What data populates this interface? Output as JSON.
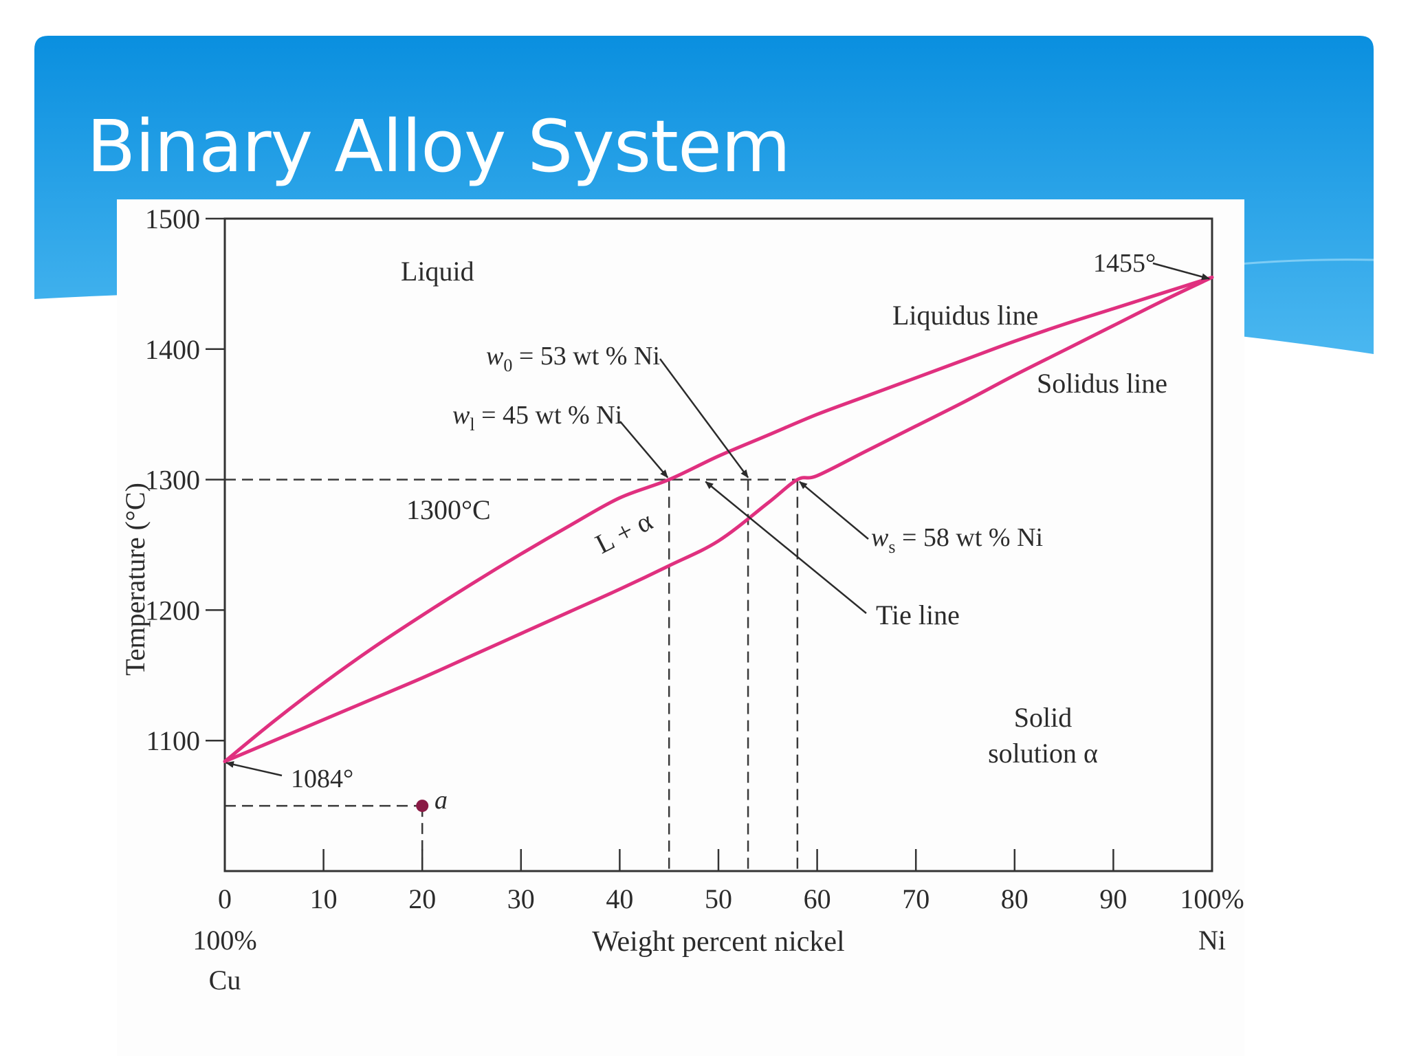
{
  "slide": {
    "title": "Binary Alloy System",
    "colors": {
      "header_top": "#0a8fdf",
      "header_bottom": "#49b6ef",
      "curve": "#e0307f",
      "point": "#8a1a45"
    }
  },
  "chart_data": {
    "type": "line",
    "title": "",
    "xlabel": "Weight percent nickel",
    "ylabel": "Temperature (°C)",
    "xlim": [
      0,
      100
    ],
    "ylim": [
      1000,
      1500
    ],
    "x_ticks": [
      0,
      10,
      20,
      30,
      40,
      50,
      60,
      70,
      80,
      90,
      100
    ],
    "x_tick_labels": [
      "0",
      "10",
      "20",
      "30",
      "40",
      "50",
      "60",
      "70",
      "80",
      "90",
      "100%"
    ],
    "x_sublabels": {
      "left": [
        "100%",
        "Cu"
      ],
      "right": [
        "Ni"
      ]
    },
    "y_ticks": [
      1100,
      1200,
      1300,
      1400,
      1500
    ],
    "y_tick_labels": [
      "1100",
      "1200",
      "1300",
      "1400",
      "1500"
    ],
    "series": [
      {
        "name": "Liquidus line",
        "x": [
          0,
          5,
          10,
          15,
          20,
          25,
          30,
          35,
          40,
          45,
          50,
          55,
          60,
          65,
          70,
          75,
          80,
          85,
          90,
          95,
          100
        ],
        "y": [
          1084,
          1115,
          1144,
          1171,
          1196,
          1220,
          1243,
          1265,
          1286,
          1300,
          1318,
          1334,
          1350,
          1364,
          1378,
          1392,
          1406,
          1419,
          1431,
          1443,
          1455
        ]
      },
      {
        "name": "Solidus line",
        "x": [
          0,
          5,
          10,
          15,
          20,
          25,
          30,
          35,
          40,
          45,
          50,
          55,
          58,
          60,
          65,
          70,
          75,
          80,
          85,
          90,
          95,
          100
        ],
        "y": [
          1084,
          1100,
          1116,
          1132,
          1148,
          1165,
          1182,
          1199,
          1216,
          1234,
          1253,
          1282,
          1300,
          1303,
          1322,
          1341,
          1360,
          1380,
          1399,
          1418,
          1437,
          1455
        ]
      }
    ],
    "guides": {
      "isotherm_temp": 1300,
      "isotherm_label": "1300°C",
      "compositions": [
        45,
        53,
        58
      ],
      "point_a": {
        "x": 20,
        "y": 1050,
        "label": "a"
      }
    },
    "annotations": {
      "liquid": "Liquid",
      "liquidus": "Liquidus line",
      "solidus": "Solidus line",
      "two_phase": "L + α",
      "solid_1": "Solid",
      "solid_2": "solution α",
      "melt_ni": "1455°",
      "melt_cu": "1084°",
      "w0_sym": "w",
      "w0_sub": "0",
      "w0_text": " = 53 wt % Ni",
      "wl_sym": "w",
      "wl_sub": "l",
      "wl_text": " = 45 wt % Ni",
      "ws_sym": "w",
      "ws_sub": "s",
      "ws_text": " = 58 wt % Ni",
      "tie_line": "Tie line"
    },
    "grid": false,
    "legend": "none"
  }
}
